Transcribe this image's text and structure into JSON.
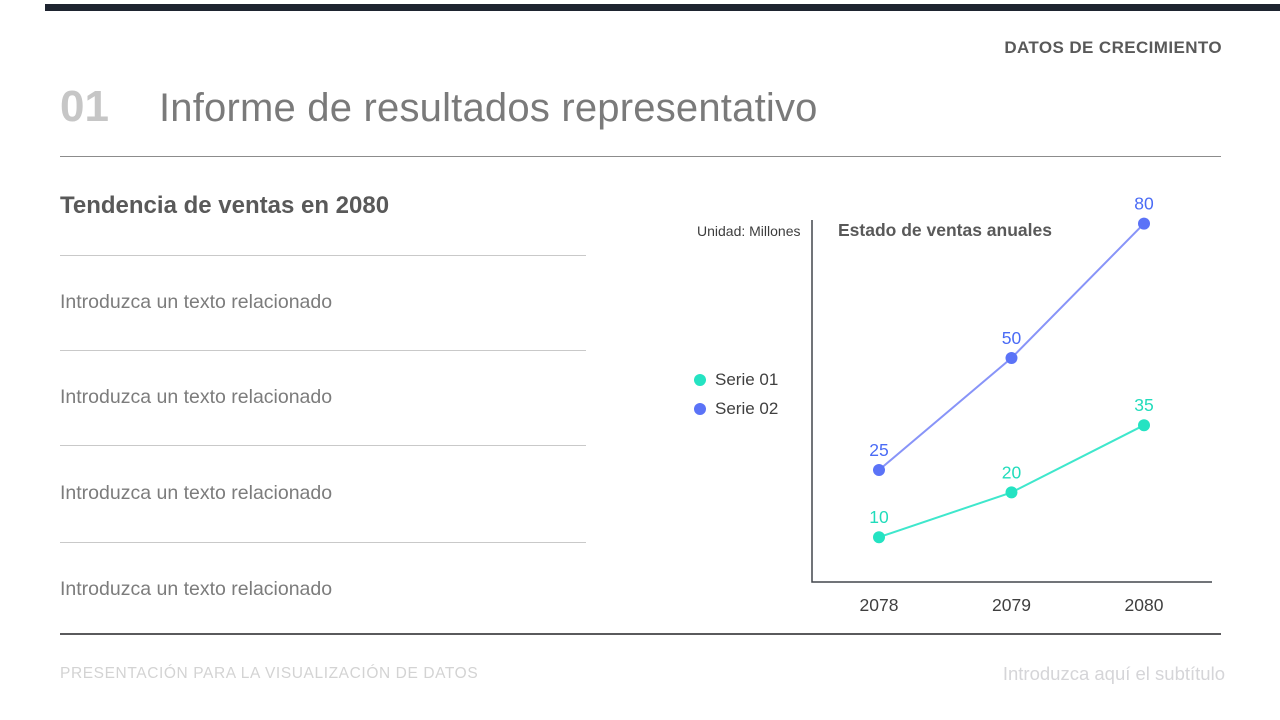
{
  "header": {
    "eyebrow": "DATOS DE CRECIMIENTO",
    "number": "01",
    "title": "Informe de resultados representativo"
  },
  "left_panel": {
    "heading": "Tendencia de ventas en 2080",
    "items": [
      "Introduzca un texto relacionado",
      "Introduzca un texto relacionado",
      "Introduzca un texto relacionado",
      "Introduzca un texto relacionado"
    ]
  },
  "chart_data": {
    "type": "line",
    "title": "Estado de ventas anuales",
    "unit_label": "Unidad: Millones",
    "categories": [
      "2078",
      "2079",
      "2080"
    ],
    "series": [
      {
        "name": "Serie 01",
        "values": [
          10,
          20,
          35
        ],
        "color": "#24E3C2",
        "line_color": "#3FE7CC",
        "label_color": "#21DCBB"
      },
      {
        "name": "Serie 02",
        "values": [
          25,
          50,
          80
        ],
        "color": "#5B73F7",
        "line_color": "#8894F8",
        "label_color": "#4A6BF5"
      }
    ],
    "ylim": [
      0,
      88
    ],
    "grid": false,
    "legend_position": "left",
    "data_labels": true
  },
  "footer": {
    "left": "PRESENTACIÓN PARA LA VISUALIZACIÓN DE DATOS",
    "right": "Introduzca aquí el subtítulo"
  },
  "colors": {
    "accent_bar": "#1e2430",
    "axis": "#42464d",
    "serie1": "#24E3C2",
    "serie2": "#5B73F7"
  }
}
